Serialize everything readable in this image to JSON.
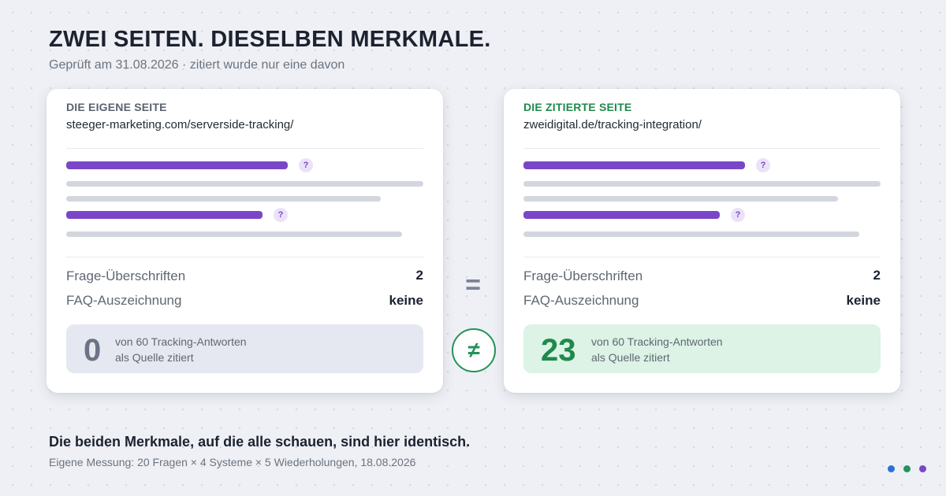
{
  "header": {
    "title": "ZWEI SEITEN. DIESELBEN MERKMALE.",
    "subtitle": "Geprüft am 31.08.2026 · zitiert wurde nur eine davon"
  },
  "cards": {
    "left": {
      "label": "DIE EIGENE SEITE",
      "label_color": "#5b6270",
      "url": "steeger-marketing.com/serverside-tracking/",
      "question_mark": "?",
      "rows": [
        {
          "label": "Frage-Überschriften",
          "value": "2"
        },
        {
          "label": "FAQ-Auszeichnung",
          "value": "keine"
        }
      ],
      "result_number": "0",
      "result_number_color": "#6b7385",
      "result_line1": "von 60 Tracking-Antworten",
      "result_line2": "als Quelle zitiert"
    },
    "right": {
      "label": "DIE ZITIERTE SEITE",
      "label_color": "#1f8a4c",
      "url": "zweidigital.de/tracking-integration/",
      "question_mark": "?",
      "rows": [
        {
          "label": "Frage-Überschriften",
          "value": "2"
        },
        {
          "label": "FAQ-Auszeichnung",
          "value": "keine"
        }
      ],
      "result_number": "23",
      "result_number_color": "#1f8a4c",
      "result_line1": "von 60 Tracking-Antworten",
      "result_line2": "als Quelle zitiert"
    }
  },
  "comparison": {
    "equal_symbol": "=",
    "not_equal_symbol": "≠"
  },
  "footer": {
    "title": "Die beiden Merkmale, auf die alle schauen, sind hier identisch.",
    "note": "Eigene Messung: 20 Fragen × 4 Systeme × 5 Wiederholungen, 18.08.2026"
  },
  "colors": {
    "accent_purple": "#7a46c8",
    "accent_green": "#23935a",
    "dot_colors": [
      "#2d6fd6",
      "#23935a",
      "#7a46c8"
    ]
  }
}
